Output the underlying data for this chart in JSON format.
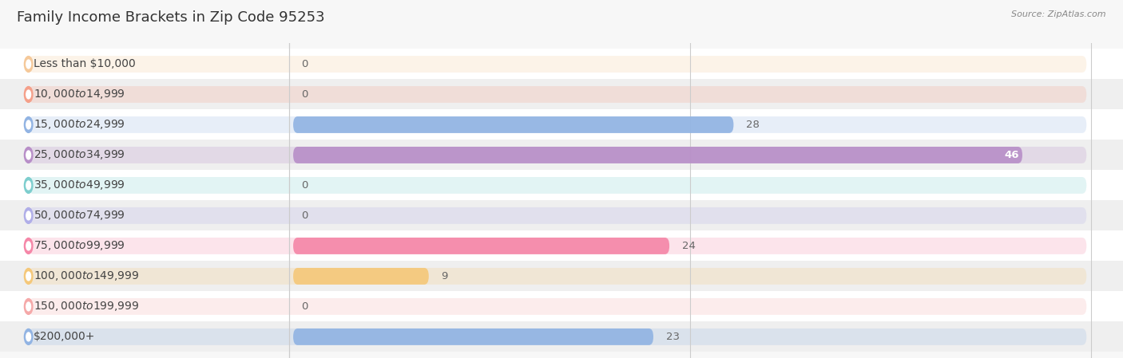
{
  "title": "Family Income Brackets in Zip Code 95253",
  "source": "Source: ZipAtlas.com",
  "categories": [
    "Less than $10,000",
    "$10,000 to $14,999",
    "$15,000 to $24,999",
    "$25,000 to $34,999",
    "$35,000 to $49,999",
    "$50,000 to $74,999",
    "$75,000 to $99,999",
    "$100,000 to $149,999",
    "$150,000 to $199,999",
    "$200,000+"
  ],
  "values": [
    0,
    0,
    28,
    46,
    0,
    0,
    24,
    9,
    0,
    23
  ],
  "bar_colors": [
    "#f5c99a",
    "#f5a08a",
    "#92b4e3",
    "#b88fc8",
    "#7ecece",
    "#b0aee8",
    "#f587a8",
    "#f5c87a",
    "#f5a9a9",
    "#92b4e3"
  ],
  "xlim": [
    0,
    50
  ],
  "xticks": [
    0,
    25,
    50
  ],
  "bg_color": "#f7f7f7",
  "row_colors": [
    "#ffffff",
    "#efefef"
  ],
  "title_fontsize": 13,
  "label_fontsize": 10,
  "value_fontsize": 9.5
}
